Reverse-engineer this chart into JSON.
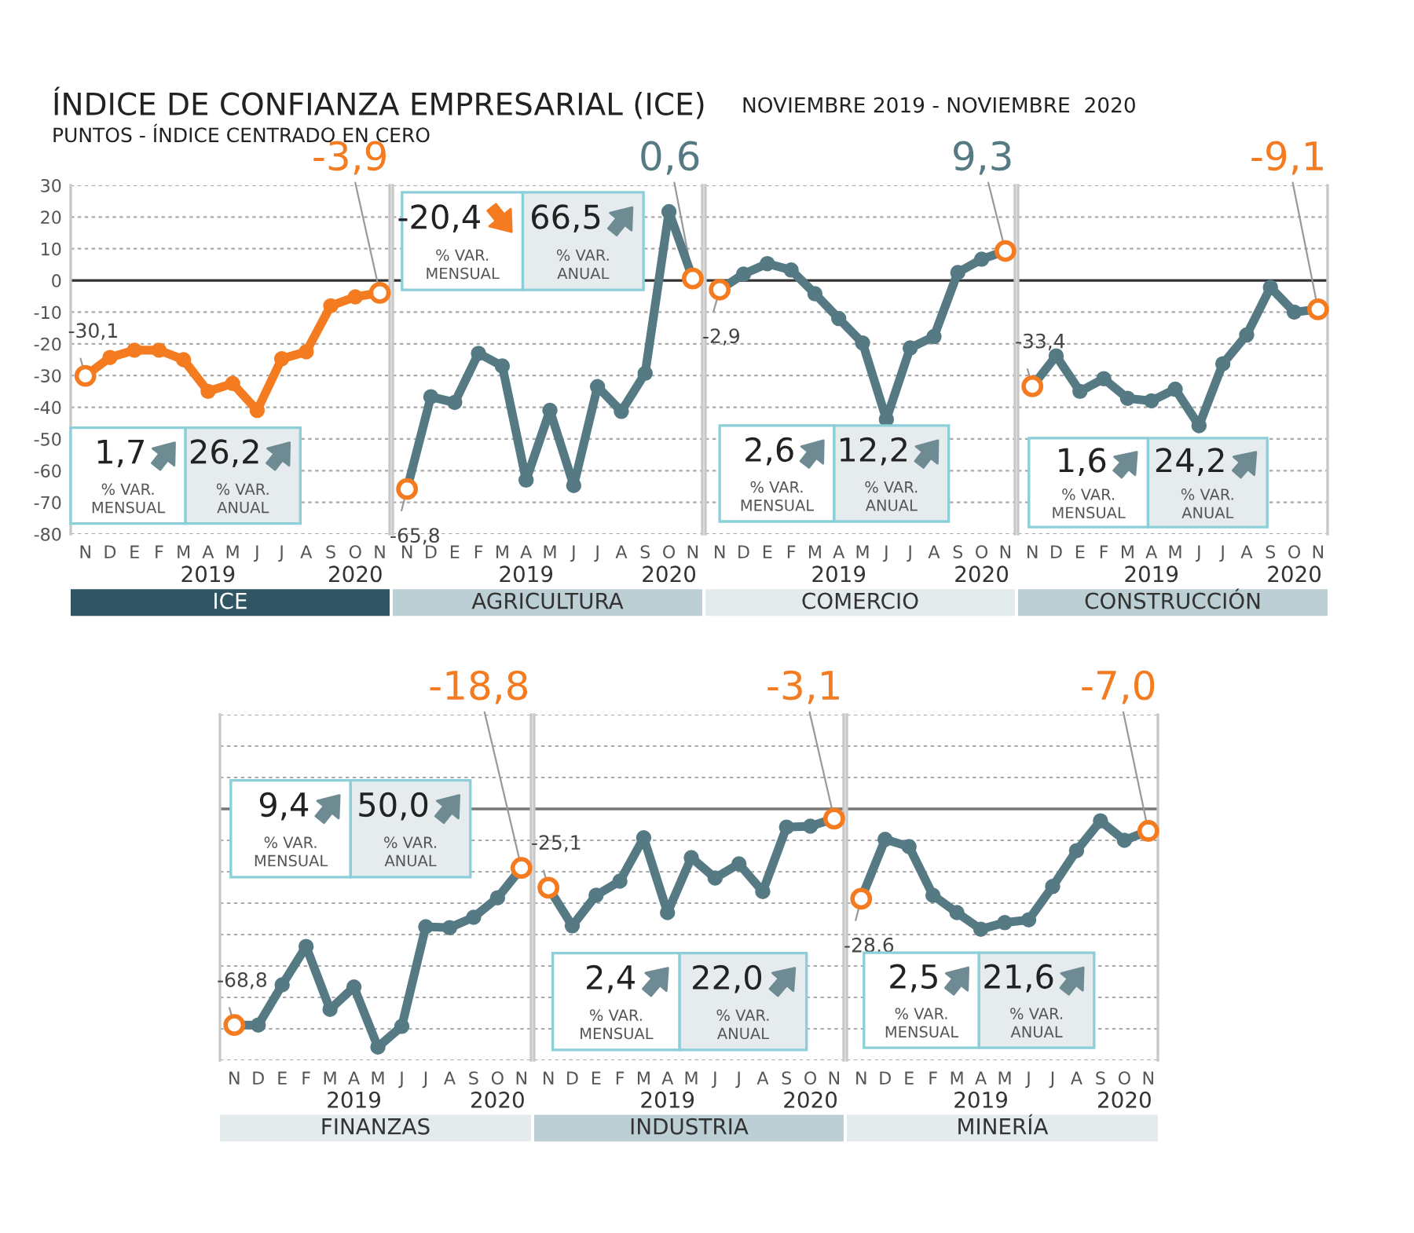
{
  "chart_data": [
    {
      "type": "line",
      "title": "ÍNDICE DE CONFIANZA EMPRESARIAL (ICE)",
      "subtitle": "PUNTOS - ÍNDICE CENTRADO EN CERO",
      "xlabel": "ICE",
      "categories": [
        "N",
        "D",
        "E",
        "F",
        "M",
        "A",
        "M",
        "J",
        "J",
        "A",
        "S",
        "O",
        "N"
      ],
      "color": "#f47b20",
      "values": [
        -30.1,
        -24.3,
        -22,
        -22,
        -25,
        -35,
        -32.5,
        -41,
        -24.7,
        -22.5,
        -8,
        -5.2,
        -3.9
      ],
      "value_labels": [
        "-30,1",
        null,
        null,
        null,
        null,
        null,
        null,
        null,
        null,
        null,
        null,
        null,
        "-3,9"
      ],
      "ylim": [
        -80,
        30
      ],
      "yticks": [
        -80,
        -70,
        -60,
        -50,
        -40,
        -30,
        -20,
        -10,
        0,
        10,
        20,
        30
      ],
      "grid": "y",
      "marker": "circle",
      "ref_lines": [
        {
          "axis": "y",
          "value": 0,
          "color": "#333333"
        }
      ],
      "annotations": [
        "NOVIEMBRE 2019 - NOVIEMBRE  2020",
        "2019",
        "2020",
        "1,7",
        "% VAR.\nMENSUAL",
        "26,2",
        "% VAR.\nANUAL"
      ]
    },
    {
      "type": "line",
      "xlabel": "AGRICULTURA",
      "categories": [
        "N",
        "D",
        "E",
        "F",
        "M",
        "A",
        "M",
        "J",
        "J",
        "A",
        "S",
        "O",
        "N"
      ],
      "color": "#557a84",
      "values": [
        -65.8,
        -36.7,
        -38.5,
        -23,
        -27,
        -63,
        -41,
        -64.7,
        -33.5,
        -41.3,
        -29.3,
        21.7,
        0.6
      ],
      "value_labels": [
        "-65,8",
        null,
        null,
        null,
        null,
        null,
        null,
        null,
        null,
        null,
        null,
        null,
        "0,6"
      ],
      "ylim": [
        -80,
        30
      ],
      "yticks": [
        -80,
        -70,
        -60,
        -50,
        -40,
        -30,
        -20,
        -10,
        0,
        10,
        20,
        30
      ],
      "tick_labels": "x",
      "grid": "y",
      "marker": "circle",
      "ref_lines": [
        {
          "axis": "y",
          "value": 0,
          "color": "#333333"
        }
      ],
      "annotations": [
        "2019",
        "2020",
        "-20,4",
        "% VAR.\nMENSUAL",
        "66,5",
        "% VAR.\nANUAL"
      ]
    },
    {
      "type": "line",
      "xlabel": "COMERCIO",
      "categories": [
        "N",
        "D",
        "E",
        "F",
        "M",
        "A",
        "M",
        "J",
        "J",
        "A",
        "S",
        "O",
        "N"
      ],
      "color": "#557a84",
      "values": [
        -2.9,
        2,
        5.3,
        3.3,
        -4.2,
        -12,
        -19.7,
        -43.8,
        -21.3,
        -17.7,
        2.5,
        6.7,
        9.3
      ],
      "value_labels": [
        "-2,9",
        null,
        null,
        null,
        null,
        null,
        null,
        null,
        null,
        null,
        null,
        null,
        "9,3"
      ],
      "ylim": [
        -80,
        30
      ],
      "yticks": [
        -80,
        -70,
        -60,
        -50,
        -40,
        -30,
        -20,
        -10,
        0,
        10,
        20,
        30
      ],
      "tick_labels": "x",
      "grid": "y",
      "marker": "circle",
      "ref_lines": [
        {
          "axis": "y",
          "value": 0,
          "color": "#333333"
        }
      ],
      "annotations": [
        "2019",
        "2020",
        "2,6",
        "% VAR.\nMENSUAL",
        "12,2",
        "% VAR.\nANUAL"
      ]
    },
    {
      "type": "line",
      "xlabel": "CONSTRUCCIÓN",
      "categories": [
        "N",
        "D",
        "E",
        "F",
        "M",
        "A",
        "M",
        "J",
        "J",
        "A",
        "S",
        "O",
        "N"
      ],
      "color": "#557a84",
      "values": [
        -33.4,
        -23.8,
        -35,
        -31,
        -37.2,
        -38,
        -34.3,
        -45.8,
        -26.3,
        -17.2,
        -2.2,
        -10,
        -9.1
      ],
      "value_labels": [
        "-33,4",
        null,
        null,
        null,
        null,
        null,
        null,
        null,
        null,
        null,
        null,
        null,
        "-9,1"
      ],
      "ylim": [
        -80,
        30
      ],
      "yticks": [
        -80,
        -70,
        -60,
        -50,
        -40,
        -30,
        -20,
        -10,
        0,
        10,
        20,
        30
      ],
      "tick_labels": "x",
      "grid": "y",
      "marker": "circle",
      "ref_lines": [
        {
          "axis": "y",
          "value": 0,
          "color": "#333333"
        }
      ],
      "annotations": [
        "2019",
        "2020",
        "1,6",
        "% VAR.\nMENSUAL",
        "24,2",
        "% VAR.\nANUAL"
      ]
    },
    {
      "type": "line",
      "xlabel": "FINANZAS",
      "categories": [
        "N",
        "D",
        "E",
        "F",
        "M",
        "A",
        "M",
        "J",
        "J",
        "A",
        "S",
        "O",
        "N"
      ],
      "color": "#557a84",
      "values": [
        -68.8,
        -68.8,
        -56,
        -43.8,
        -63.8,
        -56.7,
        -75.8,
        -69.2,
        -37.5,
        -37.8,
        -34.5,
        -28.3,
        -18.8
      ],
      "value_labels": [
        "-68,8",
        null,
        null,
        null,
        null,
        null,
        null,
        null,
        null,
        null,
        null,
        null,
        "-18,8"
      ],
      "ylim": [
        -80,
        30
      ],
      "yticks": [
        -80,
        -70,
        -60,
        -50,
        -40,
        -30,
        -20,
        -10,
        0,
        10,
        20,
        30
      ],
      "tick_labels": "x",
      "grid": "y",
      "marker": "circle",
      "ref_lines": [
        {
          "axis": "y",
          "value": 0,
          "color": "#777777"
        }
      ],
      "annotations": [
        "2019",
        "2020",
        "9,4",
        "% VAR.\nMENSUAL",
        "50,0",
        "% VAR.\nANUAL"
      ]
    },
    {
      "type": "line",
      "xlabel": "INDUSTRIA",
      "categories": [
        "N",
        "D",
        "E",
        "F",
        "M",
        "A",
        "M",
        "J",
        "J",
        "A",
        "S",
        "O",
        "N"
      ],
      "color": "#557a84",
      "values": [
        -25.1,
        -37.2,
        -27.5,
        -23,
        -9.2,
        -33,
        -15.5,
        -22,
        -17.5,
        -26.3,
        -5.8,
        -5.5,
        -3.1
      ],
      "value_labels": [
        "-25,1",
        null,
        null,
        null,
        null,
        null,
        null,
        null,
        null,
        null,
        null,
        null,
        "-3,1"
      ],
      "ylim": [
        -80,
        30
      ],
      "yticks": [
        -80,
        -70,
        -60,
        -50,
        -40,
        -30,
        -20,
        -10,
        0,
        10,
        20,
        30
      ],
      "tick_labels": "x",
      "grid": "y",
      "marker": "circle",
      "ref_lines": [
        {
          "axis": "y",
          "value": 0,
          "color": "#777777"
        }
      ],
      "annotations": [
        "2019",
        "2020",
        "2,4",
        "% VAR.\nMENSUAL",
        "22,0",
        "% VAR.\nANUAL"
      ]
    },
    {
      "type": "line",
      "xlabel": "MINERÍA",
      "categories": [
        "N",
        "D",
        "E",
        "F",
        "M",
        "A",
        "M",
        "J",
        "J",
        "A",
        "S",
        "O",
        "N"
      ],
      "color": "#557a84",
      "values": [
        -28.6,
        -9.7,
        -12,
        -27.5,
        -33,
        -38.3,
        -36.2,
        -35.3,
        -24.7,
        -13.3,
        -3.8,
        -10,
        -7.0
      ],
      "value_labels": [
        "-28,6",
        null,
        null,
        null,
        null,
        null,
        null,
        null,
        null,
        null,
        null,
        null,
        "-7,0"
      ],
      "ylim": [
        -80,
        30
      ],
      "yticks": [
        -80,
        -70,
        -60,
        -50,
        -40,
        -30,
        -20,
        -10,
        0,
        10,
        20,
        30
      ],
      "tick_labels": "x",
      "grid": "y",
      "marker": "circle",
      "ref_lines": [
        {
          "axis": "y",
          "value": 0,
          "color": "#777777"
        }
      ],
      "annotations": [
        "2019",
        "2020",
        "2,5",
        "% VAR.\nMENSUAL",
        "21,6",
        "% VAR.\nANUAL"
      ]
    }
  ]
}
